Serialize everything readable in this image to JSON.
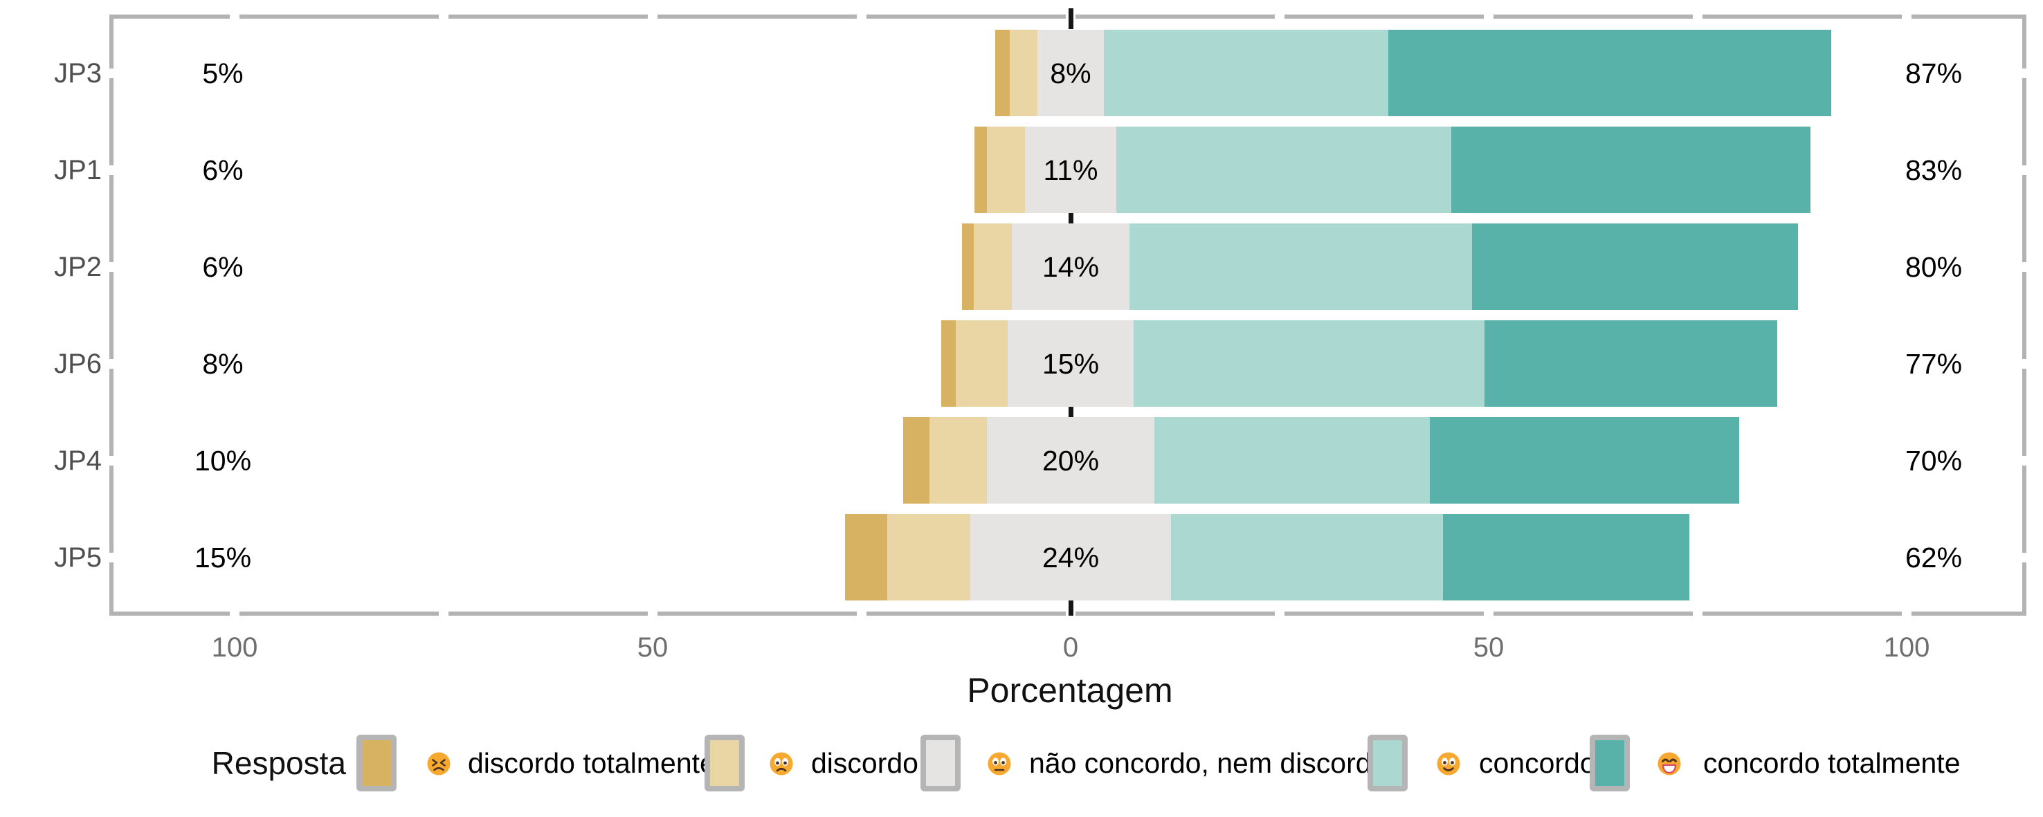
{
  "axis": {
    "xlabel": "Porcentagem",
    "tick_values": [
      -100,
      -50,
      0,
      50,
      100
    ],
    "tick_labels": [
      "100",
      "50",
      "0",
      "50",
      "100"
    ],
    "minor_tick_values": [
      -75,
      -25,
      25,
      75
    ],
    "tick_label_color": "#6e6e6e",
    "panel_border_color": "#b3b3b3",
    "zero_line_color": "#161616"
  },
  "legend": {
    "title": "Resposta",
    "items": [
      {
        "label": "discordo totalmente",
        "color": "#d8b263",
        "emoji": "confounded-face"
      },
      {
        "label": "discordo",
        "color": "#e9d6a4",
        "emoji": "frowning-face"
      },
      {
        "label": "não concordo, nem discordo",
        "color": "#e5e4e2",
        "emoji": "neutral-face"
      },
      {
        "label": "concordo",
        "color": "#abd9d2",
        "emoji": "slightly-smiling-face"
      },
      {
        "label": "concordo totalmente",
        "color": "#58b2a9",
        "emoji": "grinning-face"
      }
    ]
  },
  "chart_data": {
    "type": "bar",
    "variant": "diverging-stacked-likert",
    "title": "",
    "xlabel": "Porcentagem",
    "ylabel": "",
    "legend_position": "bottom",
    "grid": false,
    "x_range": [
      -114,
      114
    ],
    "categories": [
      "JP3",
      "JP1",
      "JP2",
      "JP6",
      "JP4",
      "JP5"
    ],
    "levels": [
      "discordo totalmente",
      "discordo",
      "não concordo, nem discordo",
      "concordo",
      "concordo totalmente"
    ],
    "level_colors": [
      "#d8b263",
      "#e9d6a4",
      "#e5e4e2",
      "#abd9d2",
      "#58b2a9"
    ],
    "series": [
      {
        "name": "discordo totalmente",
        "values": [
          1.7,
          1.5,
          1.4,
          1.8,
          3.1,
          5.1
        ]
      },
      {
        "name": "discordo",
        "values": [
          3.3,
          4.5,
          4.6,
          6.2,
          6.9,
          9.9
        ]
      },
      {
        "name": "não concordo, nem discordo",
        "values": [
          8,
          11,
          14,
          15,
          20,
          24
        ]
      },
      {
        "name": "concordo",
        "values": [
          34,
          40,
          41,
          42,
          33,
          32.5
        ]
      },
      {
        "name": "concordo totalmente",
        "values": [
          53,
          43,
          39,
          35,
          37,
          29.5
        ]
      }
    ],
    "printed_labels": {
      "left_disagree_total": [
        "5%",
        "6%",
        "6%",
        "8%",
        "10%",
        "15%"
      ],
      "center_neutral": [
        "8%",
        "11%",
        "14%",
        "15%",
        "20%",
        "24%"
      ],
      "right_agree_total": [
        "87%",
        "83%",
        "80%",
        "77%",
        "70%",
        "62%"
      ]
    },
    "neutral_centered_on_zero": true
  }
}
